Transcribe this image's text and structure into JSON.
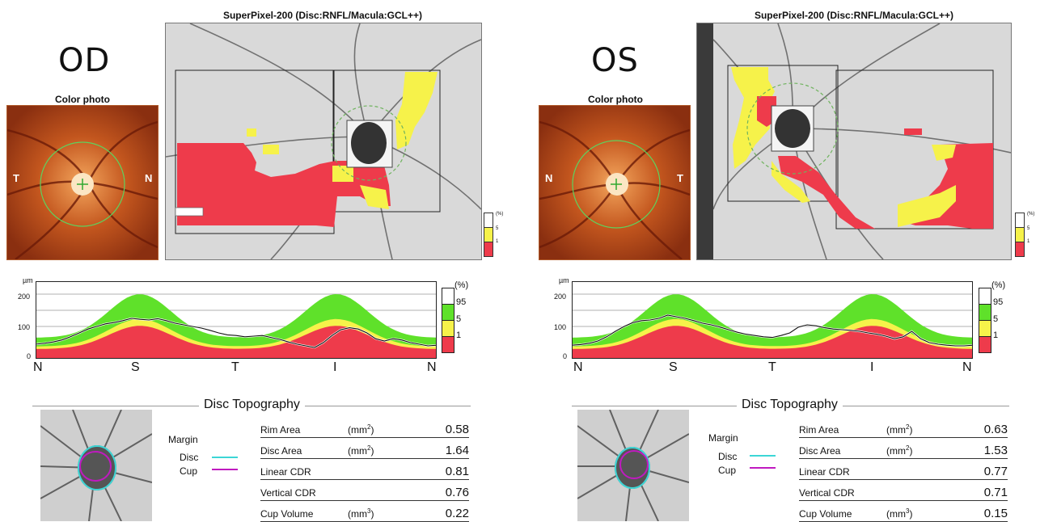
{
  "colors": {
    "red": "#ee3b4b",
    "yellow": "#f6f24a",
    "green": "#5fe12a",
    "white": "#ffffff",
    "disc": "#3cd6d6",
    "cup": "#c01ac0"
  },
  "eyes": [
    {
      "label": "OD",
      "color_photo_title": "Color photo",
      "photo_left_letter": "T",
      "photo_right_letter": "N",
      "map_title": "SuperPixel-200 (Disc:RNFL/Macula:GCL++)",
      "map_legend": {
        "unit": "(%)",
        "labels": [
          "5",
          "1"
        ]
      },
      "tsnit": {
        "unit": "µm",
        "ticks": [
          "200",
          "100",
          "0"
        ],
        "letters": [
          "N",
          "S",
          "T",
          "I",
          "N"
        ],
        "legend_unit": "(%)",
        "legend_labels": [
          "95",
          "5",
          "1"
        ],
        "measured": [
          45,
          48,
          52,
          58,
          68,
          80,
          92,
          100,
          108,
          112,
          118,
          125,
          122,
          120,
          124,
          118,
          110,
          105,
          100,
          95,
          88,
          80,
          74,
          72,
          68,
          70,
          72,
          66,
          60,
          52,
          45,
          40,
          35,
          50,
          72,
          90,
          96,
          92,
          80,
          62,
          55,
          62,
          58,
          50,
          45,
          40,
          42
        ]
      },
      "disc_topography": {
        "title": "Disc Topography",
        "margin": "Margin",
        "disc": "Disc",
        "cup": "Cup",
        "rows": [
          {
            "label": "Rim Area",
            "unit": "(mm",
            "unit_sup": "2",
            "unit_end": ")",
            "value": "0.58"
          },
          {
            "label": "Disc Area",
            "unit": "(mm",
            "unit_sup": "2",
            "unit_end": ")",
            "value": "1.64"
          },
          {
            "label": "Linear CDR",
            "unit": "",
            "unit_sup": "",
            "unit_end": "",
            "value": "0.81"
          },
          {
            "label": "Vertical CDR",
            "unit": "",
            "unit_sup": "",
            "unit_end": "",
            "value": "0.76"
          },
          {
            "label": "Cup Volume",
            "unit": "(mm",
            "unit_sup": "3",
            "unit_end": ")",
            "value": "0.22"
          }
        ]
      }
    },
    {
      "label": "OS",
      "color_photo_title": "Color photo",
      "photo_left_letter": "N",
      "photo_right_letter": "T",
      "map_title": "SuperPixel-200 (Disc:RNFL/Macula:GCL++)",
      "map_legend": {
        "unit": "(%)",
        "labels": [
          "5",
          "1"
        ]
      },
      "tsnit": {
        "unit": "µm",
        "ticks": [
          "200",
          "100",
          "0"
        ],
        "letters": [
          "N",
          "S",
          "T",
          "I",
          "N"
        ],
        "legend_unit": "(%)",
        "legend_labels": [
          "95",
          "5",
          "1"
        ],
        "measured": [
          42,
          44,
          48,
          55,
          68,
          85,
          100,
          112,
          118,
          120,
          125,
          135,
          130,
          125,
          118,
          110,
          105,
          98,
          90,
          82,
          76,
          72,
          68,
          66,
          72,
          80,
          98,
          105,
          102,
          96,
          92,
          90,
          88,
          85,
          80,
          76,
          70,
          62,
          68,
          85,
          62,
          50,
          45,
          42,
          40,
          40,
          42
        ]
      },
      "disc_topography": {
        "title": "Disc Topography",
        "margin": "Margin",
        "disc": "Disc",
        "cup": "Cup",
        "rows": [
          {
            "label": "Rim Area",
            "unit": "(mm",
            "unit_sup": "2",
            "unit_end": ")",
            "value": "0.63"
          },
          {
            "label": "Disc Area",
            "unit": "(mm",
            "unit_sup": "2",
            "unit_end": ")",
            "value": "1.53"
          },
          {
            "label": "Linear CDR",
            "unit": "",
            "unit_sup": "",
            "unit_end": "",
            "value": "0.77"
          },
          {
            "label": "Vertical CDR",
            "unit": "",
            "unit_sup": "",
            "unit_end": "",
            "value": "0.71"
          },
          {
            "label": "Cup Volume",
            "unit": "(mm",
            "unit_sup": "3",
            "unit_end": ")",
            "value": "0.15"
          }
        ]
      }
    }
  ]
}
